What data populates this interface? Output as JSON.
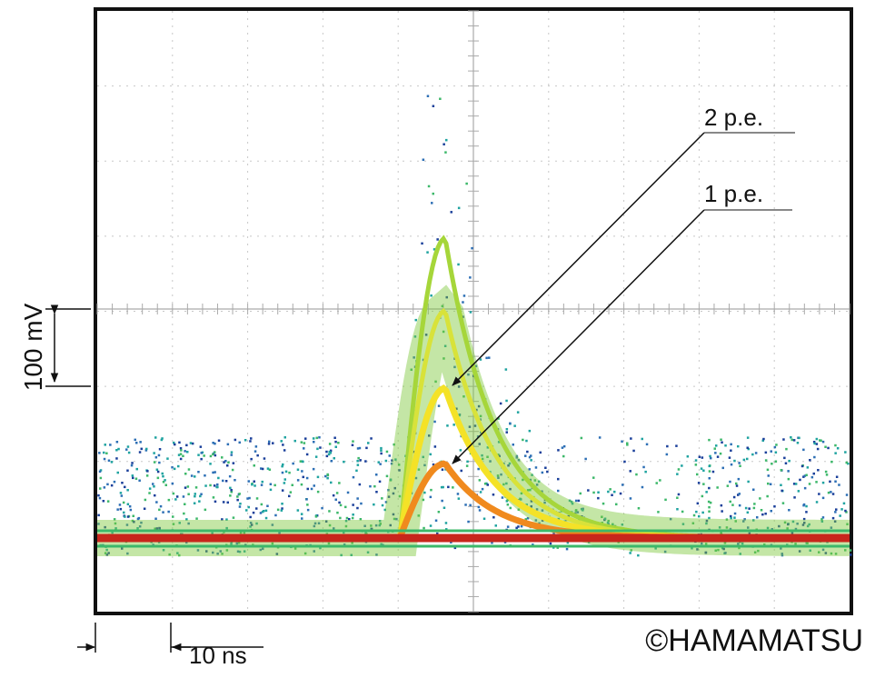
{
  "annotations": {
    "label_2pe": "2 p.e.",
    "label_1pe": "1 p.e."
  },
  "scale": {
    "vertical": "100 mV",
    "horizontal": "10 ns"
  },
  "credit": "©HAMAMATSU"
}
